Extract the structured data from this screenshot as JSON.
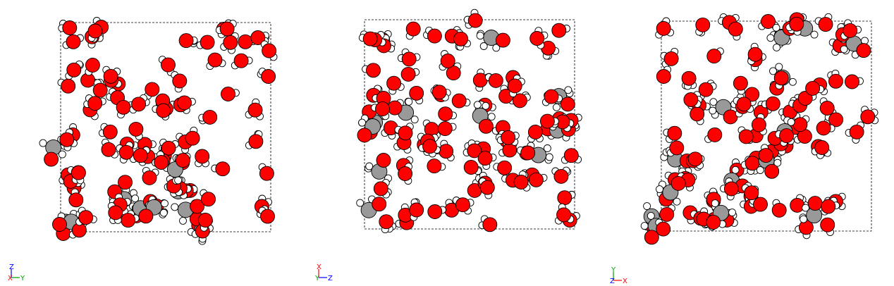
{
  "colors": {
    "oxygen": "#ff0000",
    "carbon": "#999999",
    "hydrogen": "#ffffff",
    "outline": "#000000",
    "cell_border": "#000000",
    "axis_x": "#ff0000",
    "axis_y": "#00a000",
    "axis_z": "#0000ff"
  },
  "panels": [
    {
      "id": "panel-1",
      "seed": 11,
      "carbon_groups": 10,
      "oxygen_count": 85,
      "axes": {
        "right": "Y",
        "up": "Z",
        "corner": "X"
      }
    },
    {
      "id": "panel-2",
      "seed": 29,
      "carbon_groups": 10,
      "oxygen_count": 85,
      "axes": {
        "right": "Z",
        "up": "X",
        "corner": "Y"
      }
    },
    {
      "id": "panel-3",
      "seed": 47,
      "carbon_groups": 14,
      "oxygen_count": 85,
      "axes": {
        "right": "X",
        "up": "Y",
        "corner": "Z"
      }
    }
  ]
}
